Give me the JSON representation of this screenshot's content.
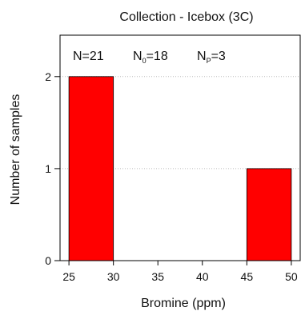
{
  "chart_data": {
    "type": "bar",
    "title": "Collection - Icebox (3C)",
    "xlabel": "Bromine (ppm)",
    "ylabel": "Number  of  samples",
    "bin_edges": [
      25,
      30,
      35,
      40,
      45,
      50
    ],
    "values": [
      2,
      0,
      0,
      0,
      1
    ],
    "xlim": [
      24,
      51
    ],
    "ylim": [
      0,
      2.45
    ],
    "xticks": [
      "25",
      "30",
      "35",
      "40",
      "45",
      "50"
    ],
    "yticks": [
      "0",
      "1",
      "2"
    ],
    "bar_color": "#ff0000",
    "grid": "horizontal dotted at y ticks",
    "annotations": {
      "n": "N=21",
      "n0_base": "N",
      "n0_sub": "0",
      "n0_rest": "=18",
      "np_base": "N",
      "np_sub": "P",
      "np_rest": "=3"
    }
  }
}
